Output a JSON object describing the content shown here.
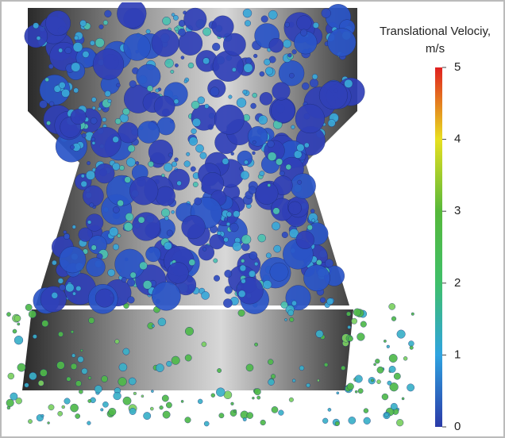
{
  "colorbar": {
    "title": [
      "Translational Velociy,",
      "m/s"
    ],
    "lim": [
      0,
      5
    ],
    "ticks": [
      0,
      1,
      2,
      3,
      4,
      5
    ]
  }
}
